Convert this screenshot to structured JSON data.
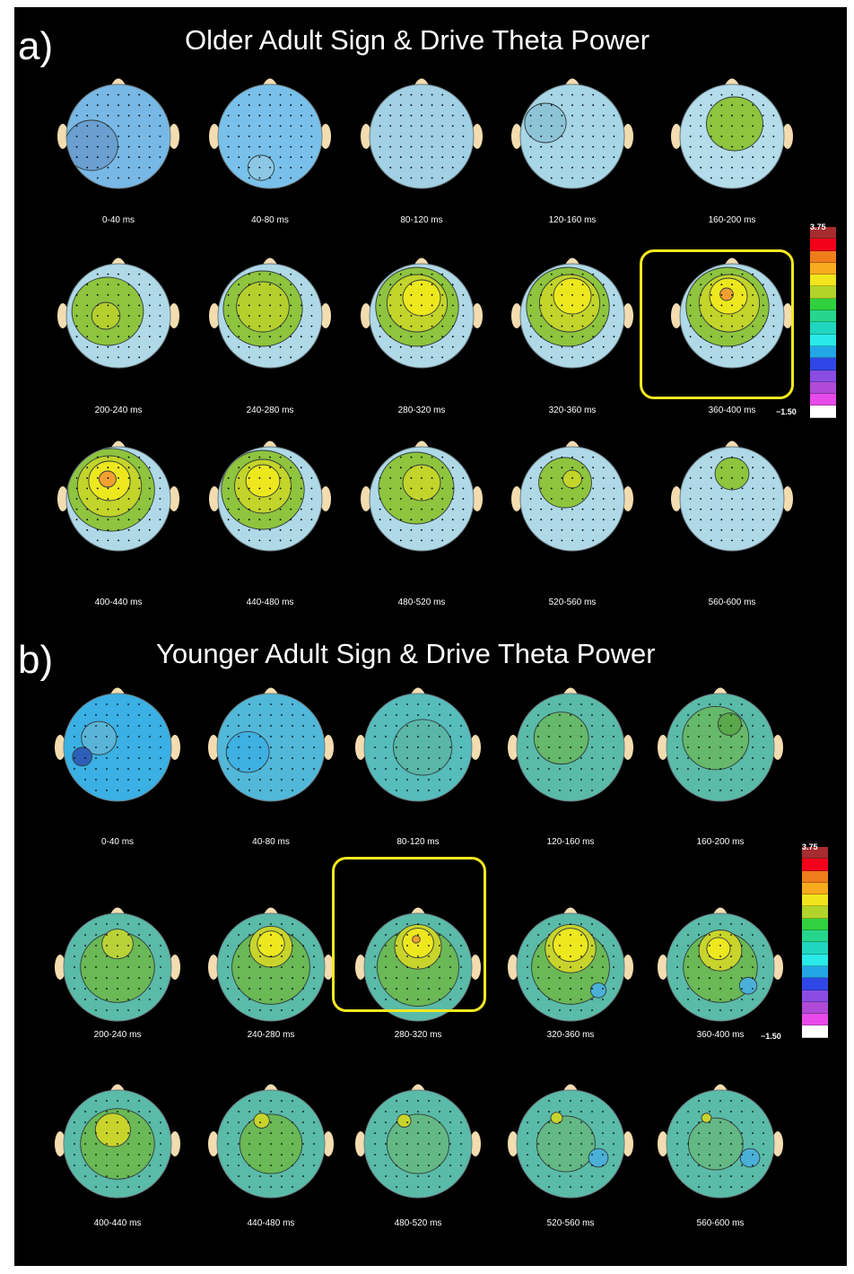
{
  "panels": [
    {
      "id": "a",
      "letter": "a)",
      "title": "Older Adult Sign & Drive Theta Power",
      "colorbar": {
        "max_label": "3.75",
        "min_label": "−1.50"
      },
      "highlighted_interval": "360-400 ms",
      "maps": [
        {
          "label": "0-40 ms",
          "base": "#78b8e6",
          "blobs": [
            {
              "c": "#6a9fd0",
              "dx": -30,
              "dy": 10,
              "r": 28
            }
          ]
        },
        {
          "label": "40-80 ms",
          "base": "#79c1ea",
          "blobs": [
            {
              "c": "#8cc8e6",
              "dx": -10,
              "dy": 35,
              "r": 14
            }
          ]
        },
        {
          "label": "80-120 ms",
          "base": "#a2d0e4",
          "blobs": []
        },
        {
          "label": "120-160 ms",
          "base": "#a7d6e6",
          "blobs": [
            {
              "c": "#8dc4d6",
              "dx": -30,
              "dy": -15,
              "r": 22
            }
          ]
        },
        {
          "label": "160-200 ms",
          "base": "#b4dcea",
          "blobs": [
            {
              "c": "#8ec43e",
              "dx": 3,
              "dy": -14,
              "r": 30
            }
          ]
        },
        {
          "label": "200-240 ms",
          "base": "#b0d9e8",
          "blobs": [
            {
              "c": "#8ec43e",
              "dx": -12,
              "dy": -5,
              "r": 38
            },
            {
              "c": "#b5cf2c",
              "dx": -14,
              "dy": 0,
              "r": 15
            }
          ]
        },
        {
          "label": "240-280 ms",
          "base": "#b0d9e8",
          "blobs": [
            {
              "c": "#8ec43e",
              "dx": -8,
              "dy": -8,
              "r": 42
            },
            {
              "c": "#b5cf2c",
              "dx": -8,
              "dy": -10,
              "r": 28
            }
          ]
        },
        {
          "label": "280-320 ms",
          "base": "#b0d9e8",
          "blobs": [
            {
              "c": "#8ec43e",
              "dx": -5,
              "dy": -10,
              "r": 44
            },
            {
              "c": "#c3d42a",
              "dx": -5,
              "dy": -14,
              "r": 32
            },
            {
              "c": "#ede81e",
              "dx": 0,
              "dy": -20,
              "r": 20
            }
          ]
        },
        {
          "label": "320-360 ms",
          "base": "#b0d9e8",
          "blobs": [
            {
              "c": "#8ec43e",
              "dx": -5,
              "dy": -10,
              "r": 44
            },
            {
              "c": "#c3d42a",
              "dx": -3,
              "dy": -14,
              "r": 32
            },
            {
              "c": "#ede81e",
              "dx": 0,
              "dy": -22,
              "r": 20
            }
          ]
        },
        {
          "label": "360-400 ms",
          "base": "#b0d9e8",
          "blobs": [
            {
              "c": "#8ec43e",
              "dx": -5,
              "dy": -10,
              "r": 44
            },
            {
              "c": "#c3d42a",
              "dx": -3,
              "dy": -14,
              "r": 32
            },
            {
              "c": "#ede81e",
              "dx": -4,
              "dy": -22,
              "r": 20
            },
            {
              "c": "#f0a030",
              "dx": -6,
              "dy": -24,
              "r": 7
            }
          ]
        },
        {
          "label": "400-440 ms",
          "base": "#b0d9e8",
          "blobs": [
            {
              "c": "#8ec43e",
              "dx": -8,
              "dy": -10,
              "r": 46
            },
            {
              "c": "#c3d42a",
              "dx": -10,
              "dy": -14,
              "r": 34
            },
            {
              "c": "#ede81e",
              "dx": -10,
              "dy": -20,
              "r": 22
            },
            {
              "c": "#f0a030",
              "dx": -12,
              "dy": -22,
              "r": 9
            }
          ]
        },
        {
          "label": "440-480 ms",
          "base": "#b0d9e8",
          "blobs": [
            {
              "c": "#8ec43e",
              "dx": -8,
              "dy": -10,
              "r": 44
            },
            {
              "c": "#c3d42a",
              "dx": -8,
              "dy": -14,
              "r": 30
            },
            {
              "c": "#ede81e",
              "dx": -8,
              "dy": -20,
              "r": 18
            }
          ]
        },
        {
          "label": "480-520 ms",
          "base": "#b0d9e8",
          "blobs": [
            {
              "c": "#8ec43e",
              "dx": -6,
              "dy": -12,
              "r": 40
            },
            {
              "c": "#c3d42a",
              "dx": 0,
              "dy": -18,
              "r": 20
            }
          ]
        },
        {
          "label": "520-560 ms",
          "base": "#b0d9e8",
          "blobs": [
            {
              "c": "#8ec43e",
              "dx": -8,
              "dy": -18,
              "r": 28
            },
            {
              "c": "#c3d42a",
              "dx": 0,
              "dy": -22,
              "r": 10
            }
          ]
        },
        {
          "label": "560-600 ms",
          "base": "#b0d9e8",
          "blobs": [
            {
              "c": "#8ec43e",
              "dx": 0,
              "dy": -28,
              "r": 18
            }
          ]
        }
      ]
    },
    {
      "id": "b",
      "letter": "b)",
      "title": "Younger Adult Sign & Drive Theta Power",
      "colorbar": {
        "max_label": "3.75",
        "min_label": "−1.50"
      },
      "highlighted_interval": "280-320 ms",
      "maps": [
        {
          "label": "0-40 ms",
          "base": "#3ab0e4",
          "blobs": [
            {
              "c": "#5ab4d8",
              "dx": -20,
              "dy": -10,
              "r": 18
            },
            {
              "c": "#2e5fb8",
              "dx": -38,
              "dy": 10,
              "r": 10
            }
          ]
        },
        {
          "label": "40-80 ms",
          "base": "#52b8da",
          "blobs": [
            {
              "c": "#3eb0e2",
              "dx": -25,
              "dy": 5,
              "r": 22
            }
          ]
        },
        {
          "label": "80-120 ms",
          "base": "#56bcbc",
          "blobs": [
            {
              "c": "#5ab7a8",
              "dx": 5,
              "dy": 0,
              "r": 30
            }
          ]
        },
        {
          "label": "120-160 ms",
          "base": "#5abba8",
          "blobs": [
            {
              "c": "#66b86a",
              "dx": -10,
              "dy": -10,
              "r": 28
            }
          ]
        },
        {
          "label": "160-200 ms",
          "base": "#5abba8",
          "blobs": [
            {
              "c": "#66b86a",
              "dx": -5,
              "dy": -10,
              "r": 34
            },
            {
              "c": "#5aa84a",
              "dx": 10,
              "dy": -25,
              "r": 12
            }
          ]
        },
        {
          "label": "200-240 ms",
          "base": "#5abba8",
          "blobs": [
            {
              "c": "#6ab856",
              "dx": 0,
              "dy": 0,
              "r": 38
            },
            {
              "c": "#b8d238",
              "dx": 0,
              "dy": -25,
              "r": 16
            }
          ]
        },
        {
          "label": "240-280 ms",
          "base": "#5abba8",
          "blobs": [
            {
              "c": "#6ab856",
              "dx": 0,
              "dy": 0,
              "r": 40
            },
            {
              "c": "#c8d42c",
              "dx": 0,
              "dy": -22,
              "r": 22
            },
            {
              "c": "#ede81e",
              "dx": 0,
              "dy": -25,
              "r": 14
            }
          ]
        },
        {
          "label": "280-320 ms",
          "base": "#5abba8",
          "blobs": [
            {
              "c": "#6ab856",
              "dx": 0,
              "dy": 0,
              "r": 42
            },
            {
              "c": "#c8d42c",
              "dx": 0,
              "dy": -22,
              "r": 24
            },
            {
              "c": "#ede81e",
              "dx": 0,
              "dy": -26,
              "r": 16
            },
            {
              "c": "#f0a030",
              "dx": -2,
              "dy": -30,
              "r": 4
            }
          ]
        },
        {
          "label": "320-360 ms",
          "base": "#5abba8",
          "blobs": [
            {
              "c": "#6ab856",
              "dx": 0,
              "dy": 0,
              "r": 40
            },
            {
              "c": "#c8d42c",
              "dx": 0,
              "dy": -20,
              "r": 26
            },
            {
              "c": "#ede81e",
              "dx": 0,
              "dy": -24,
              "r": 18
            },
            {
              "c": "#4ab0d8",
              "dx": 30,
              "dy": 25,
              "r": 8
            }
          ]
        },
        {
          "label": "360-400 ms",
          "base": "#5abba8",
          "blobs": [
            {
              "c": "#6ab856",
              "dx": 0,
              "dy": 0,
              "r": 38
            },
            {
              "c": "#c8d42c",
              "dx": 0,
              "dy": -18,
              "r": 22
            },
            {
              "c": "#ede81e",
              "dx": -2,
              "dy": -20,
              "r": 12
            },
            {
              "c": "#4ab0d8",
              "dx": 30,
              "dy": 20,
              "r": 9
            }
          ]
        },
        {
          "label": "400-440 ms",
          "base": "#5abba8",
          "blobs": [
            {
              "c": "#6ab856",
              "dx": 0,
              "dy": 0,
              "r": 38
            },
            {
              "c": "#c8d42c",
              "dx": -5,
              "dy": -15,
              "r": 18
            }
          ]
        },
        {
          "label": "440-480 ms",
          "base": "#5abba8",
          "blobs": [
            {
              "c": "#6ab856",
              "dx": 0,
              "dy": 0,
              "r": 32
            },
            {
              "c": "#c8d42c",
              "dx": -10,
              "dy": -25,
              "r": 8
            }
          ]
        },
        {
          "label": "480-520 ms",
          "base": "#5abba8",
          "blobs": [
            {
              "c": "#64b884",
              "dx": 0,
              "dy": 0,
              "r": 32
            },
            {
              "c": "#c8d42c",
              "dx": -15,
              "dy": -25,
              "r": 7
            }
          ]
        },
        {
          "label": "520-560 ms",
          "base": "#5abba8",
          "blobs": [
            {
              "c": "#64b884",
              "dx": -5,
              "dy": 0,
              "r": 30
            },
            {
              "c": "#c8d42c",
              "dx": -15,
              "dy": -28,
              "r": 6
            },
            {
              "c": "#4ab0d8",
              "dx": 30,
              "dy": 15,
              "r": 10
            }
          ]
        },
        {
          "label": "560-600 ms",
          "base": "#5abba8",
          "blobs": [
            {
              "c": "#64b884",
              "dx": -5,
              "dy": 0,
              "r": 28
            },
            {
              "c": "#c8d42c",
              "dx": -15,
              "dy": -28,
              "r": 5
            },
            {
              "c": "#4ab0d8",
              "dx": 32,
              "dy": 15,
              "r": 10
            }
          ]
        }
      ]
    }
  ],
  "colorbar_colors": [
    "#a62c2e",
    "#f2001a",
    "#ef7d1c",
    "#f8ab1e",
    "#f2e51e",
    "#b2d42a",
    "#2fd23e",
    "#26d68c",
    "#21d6c0",
    "#29eaea",
    "#23a6e6",
    "#2f47e6",
    "#8a4ce3",
    "#b14ad6",
    "#e84ae9",
    "#ffffff"
  ],
  "head_colors": {
    "nose_ears": "#f3dcb0",
    "electrode": "#000000",
    "contour": "#2e3a3a"
  }
}
